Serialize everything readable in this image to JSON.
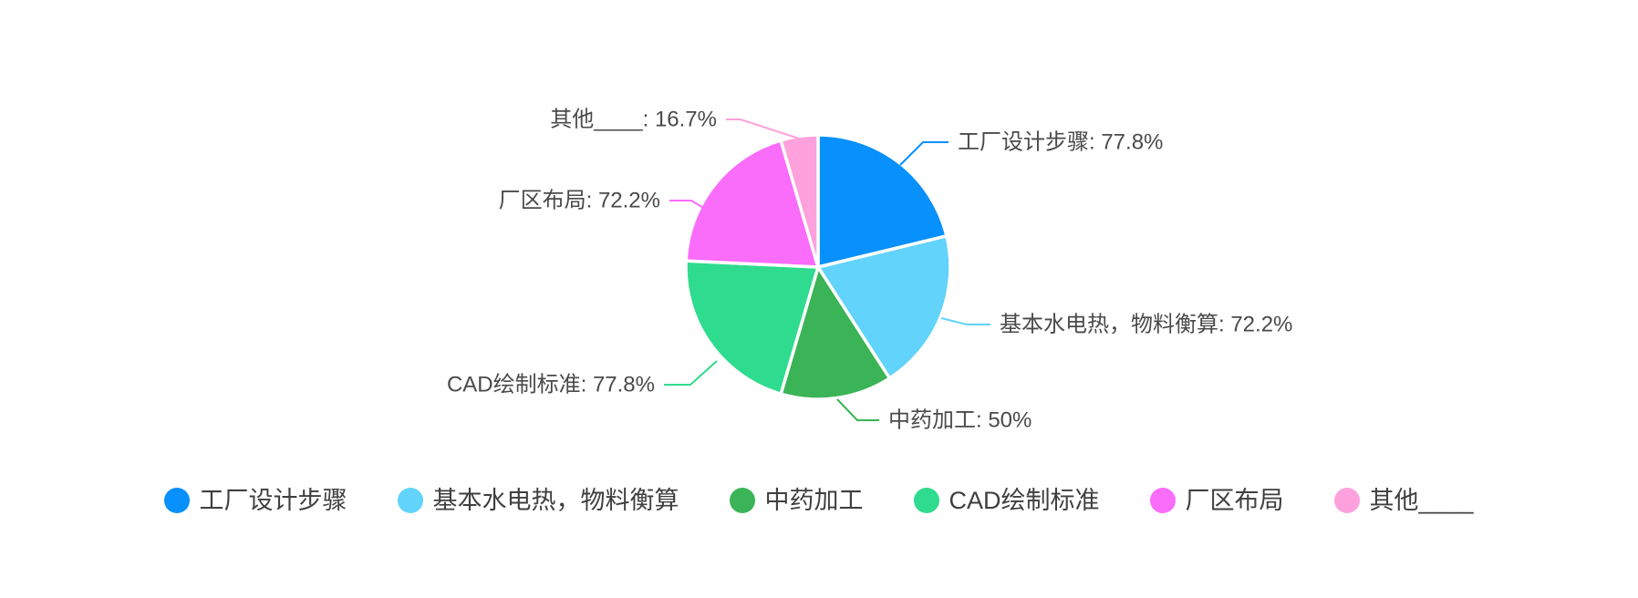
{
  "chart_data": {
    "type": "pie",
    "title": "",
    "legend_position": "bottom",
    "label_format": "{name}: {percent}",
    "background_color": "#ffffff",
    "text_color": "#4a4a4a",
    "slices": [
      {
        "label": "工厂设计步骤",
        "value": 77.8,
        "percent_label": "77.8%",
        "color": "#0890fc"
      },
      {
        "label": "基本水电热，物料衡算",
        "value": 72.2,
        "percent_label": "72.2%",
        "color": "#62d3fb"
      },
      {
        "label": "中药加工",
        "value": 50,
        "percent_label": "50%",
        "color": "#3ab456"
      },
      {
        "label": "CAD绘制标准",
        "value": 77.8,
        "percent_label": "77.8%",
        "color": "#2fdb8e"
      },
      {
        "label": "厂区布局",
        "value": 72.2,
        "percent_label": "72.2%",
        "color": "#fa6cfa"
      },
      {
        "label": "其他____",
        "value": 16.7,
        "percent_label": "16.7%",
        "color": "#fea1dc"
      }
    ]
  }
}
